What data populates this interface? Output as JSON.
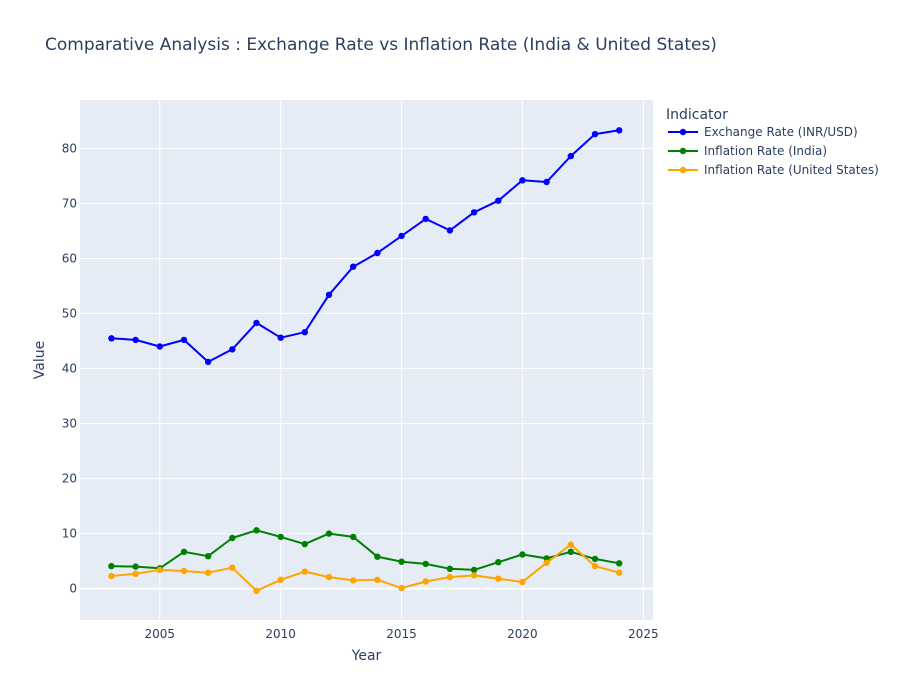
{
  "chart_data": {
    "type": "line",
    "title": "Comparative Analysis : Exchange Rate vs Inflation Rate (India & United States)",
    "xlabel": "Year",
    "ylabel": "Value",
    "xlim": [
      2001.7,
      2025.4
    ],
    "ylim": [
      -5.7,
      88.8
    ],
    "x_ticks": [
      2005,
      2010,
      2015,
      2020,
      2025
    ],
    "y_ticks": [
      0,
      10,
      20,
      30,
      40,
      50,
      60,
      70,
      80
    ],
    "grid": true,
    "legend_title": "Indicator",
    "legend_position": "top-right-outside",
    "x": [
      2003,
      2004,
      2005,
      2006,
      2007,
      2008,
      2009,
      2010,
      2011,
      2012,
      2013,
      2014,
      2015,
      2016,
      2017,
      2018,
      2019,
      2020,
      2021,
      2022,
      2023,
      2024
    ],
    "series": [
      {
        "name": "Exchange Rate (INR/USD)",
        "color": "#0000ff",
        "values": [
          45.5,
          45.2,
          44.0,
          45.2,
          41.2,
          43.5,
          48.3,
          45.6,
          46.6,
          53.4,
          58.5,
          61.0,
          64.1,
          67.2,
          65.1,
          68.4,
          70.5,
          74.2,
          73.9,
          78.6,
          82.6,
          83.3
        ]
      },
      {
        "name": "Inflation Rate (India)",
        "color": "#008000",
        "values": [
          4.1,
          4.0,
          3.7,
          6.7,
          5.9,
          9.2,
          10.6,
          9.4,
          8.1,
          10.0,
          9.4,
          5.8,
          4.9,
          4.5,
          3.6,
          3.4,
          4.8,
          6.2,
          5.5,
          6.7,
          5.4,
          4.6
        ]
      },
      {
        "name": "Inflation Rate (United States)",
        "color": "#ffa500",
        "values": [
          2.3,
          2.7,
          3.4,
          3.2,
          2.9,
          3.8,
          -0.4,
          1.6,
          3.1,
          2.1,
          1.5,
          1.6,
          0.1,
          1.3,
          2.1,
          2.4,
          1.8,
          1.2,
          4.7,
          8.0,
          4.1,
          2.9
        ]
      }
    ]
  }
}
